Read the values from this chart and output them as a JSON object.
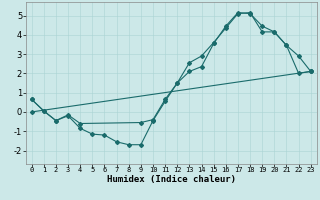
{
  "title": "",
  "xlabel": "Humidex (Indice chaleur)",
  "ylabel": "",
  "xlim": [
    -0.5,
    23.5
  ],
  "ylim": [
    -2.7,
    5.7
  ],
  "xticks": [
    0,
    1,
    2,
    3,
    4,
    5,
    6,
    7,
    8,
    9,
    10,
    11,
    12,
    13,
    14,
    15,
    16,
    17,
    18,
    19,
    20,
    21,
    22,
    23
  ],
  "yticks": [
    -2,
    -1,
    0,
    1,
    2,
    3,
    4,
    5
  ],
  "background_color": "#cce8e8",
  "line_color": "#1a6b6b",
  "line1_x": [
    0,
    1,
    2,
    3,
    4,
    5,
    6,
    7,
    8,
    9,
    10,
    11,
    12,
    13,
    14,
    15,
    16,
    17,
    18,
    19,
    20,
    21,
    22,
    23
  ],
  "line1_y": [
    0.65,
    0.05,
    -0.45,
    -0.2,
    -0.85,
    -1.15,
    -1.2,
    -1.55,
    -1.7,
    -1.7,
    -0.45,
    0.55,
    1.5,
    2.55,
    2.9,
    3.6,
    4.35,
    5.1,
    5.15,
    4.15,
    4.15,
    3.45,
    2.0,
    2.1
  ],
  "line2_x": [
    0,
    1,
    2,
    3,
    4,
    9,
    10,
    11,
    12,
    13,
    14,
    15,
    16,
    17,
    18,
    19,
    20,
    21,
    22,
    23
  ],
  "line2_y": [
    0.65,
    0.05,
    -0.45,
    -0.15,
    -0.6,
    -0.55,
    -0.4,
    0.65,
    1.5,
    2.1,
    2.35,
    3.55,
    4.45,
    5.15,
    5.1,
    4.45,
    4.15,
    3.45,
    2.9,
    2.1
  ],
  "line3_x": [
    0,
    23
  ],
  "line3_y": [
    0.0,
    2.1
  ],
  "marker": "D",
  "marker_size": 2,
  "line_width": 0.8
}
